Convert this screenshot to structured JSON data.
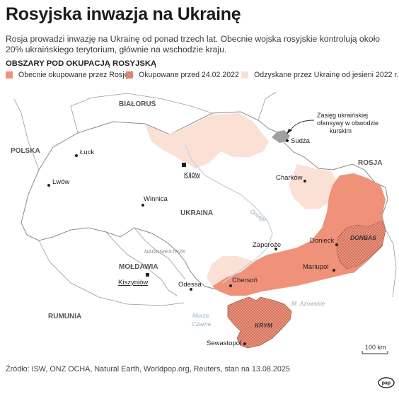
{
  "title": "Rosyjska inwazja na Ukrainę",
  "subtitle": "Rosja prowadzi inwazję na Ukrainę od ponad trzech lat. Obecnie wojska rosyjskie kontrolują około 20% ukraińskiego terytorium, głównie na wschodzie kraju.",
  "section_title": "OBSZARY POD OKUPACJĄ ROSYJSKĄ",
  "legend": [
    {
      "label": "Obecnie okupowane przez Rosję",
      "color": "#f0917a"
    },
    {
      "label": "Okupowane przed 24.02.2022 r.",
      "color": "#c97a66"
    },
    {
      "label": "Odzyskane przez Ukrainę od jesieni 2022 r.",
      "color": "#fbe0d6"
    }
  ],
  "countries": {
    "belarus": "BIAŁORUŚ",
    "poland": "POLSKA",
    "russia": "ROSJA",
    "ukraine": "UKRAINA",
    "moldova": "MOŁDAWIA",
    "romania": "RUMUNIA"
  },
  "cities": {
    "luck": "Łuck",
    "lwow": "Lwów",
    "kijow": "Kijów",
    "winnica": "Winnica",
    "kiszyniow": "Kiszyniów",
    "odessa": "Odessa",
    "cherson": "Chersoń",
    "zaporoze": "Zaporoże",
    "donieck": "Donieck",
    "mariupol": "Mariupol",
    "charkow": "Charków",
    "sudza": "Sudża",
    "sewastopol": "Sewastopol"
  },
  "regions": {
    "donbas": "DONBAS",
    "krym": "KRYM",
    "naddniestrze": "NADDNIESTRZE"
  },
  "water": {
    "dniepr": "Dniepr",
    "black_sea_1": "Morze",
    "black_sea_2": "Czarne",
    "azov": "M. Azowskie"
  },
  "kursk_note": [
    "Zasięg ukraińskiej",
    "ofensywy w obwodzie",
    "kurskim"
  ],
  "scale_label": "100 km",
  "source": "Źródło: ISW, ONZ OCHA, Natural Earth, Worldpop.org, Reuters, stan na 13.08.2025",
  "logo_text": "pap"
}
